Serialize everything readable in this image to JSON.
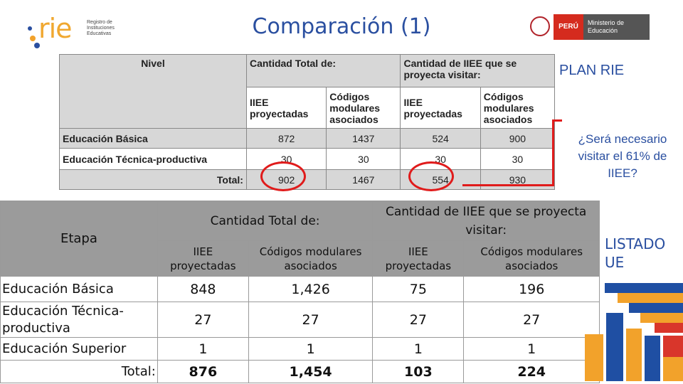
{
  "header": {
    "logo_text": "rie",
    "logo_subtitle": "Registro de Instituciones Educativas",
    "title": "Comparación (1)",
    "peru_label": "PERÚ",
    "ministry_label": "Ministerio de Educación"
  },
  "upper_table": {
    "col_nivel": "Nivel",
    "col_total": "Cantidad Total de:",
    "col_visit": "Cantidad de IIEE que se proyecta visitar:",
    "sub_iiee": "IIEE proyectadas",
    "sub_codigos": "Códigos modulares asociados",
    "rows": [
      {
        "label": "Educación Básica",
        "v1": "872",
        "v2": "1437",
        "v3": "524",
        "v4": "900"
      },
      {
        "label": "Educación Técnica-productiva",
        "v1": "30",
        "v2": "30",
        "v3": "30",
        "v4": "30"
      },
      {
        "label": "Total:",
        "v1": "902",
        "v2": "1467",
        "v3": "554",
        "v4": "930"
      }
    ]
  },
  "annotations": {
    "plan": "PLAN RIE",
    "question": "¿Será necesario visitar el 61% de IIEE?",
    "listado": "LISTADO UE"
  },
  "lower_table": {
    "etapa": "Etapa",
    "col_total": "Cantidad Total de:",
    "col_visit": "Cantidad de IIEE que se proyecta visitar:",
    "sub_iiee": "IIEE proyectadas",
    "sub_codigos": "Códigos modulares asociados",
    "rows": [
      {
        "label": "Educación Básica",
        "v1": "848",
        "v2": "1,426",
        "v3": "75",
        "v4": "196"
      },
      {
        "label": "Educación Técnica-productiva",
        "v1": "27",
        "v2": "27",
        "v3": "27",
        "v4": "27"
      },
      {
        "label": "Educación Superior",
        "v1": "1",
        "v2": "1",
        "v3": "1",
        "v4": "1"
      },
      {
        "label": "Total:",
        "v1": "876",
        "v2": "1,454",
        "v3": "103",
        "v4": "224"
      }
    ]
  },
  "colors": {
    "title_blue": "#2a4fa0",
    "alert_red": "#e01b1b",
    "header_gray": "#9b9b9b",
    "deco_blue": "#1f4fa3",
    "deco_orange": "#f2a22b",
    "deco_red": "#d9362b"
  }
}
